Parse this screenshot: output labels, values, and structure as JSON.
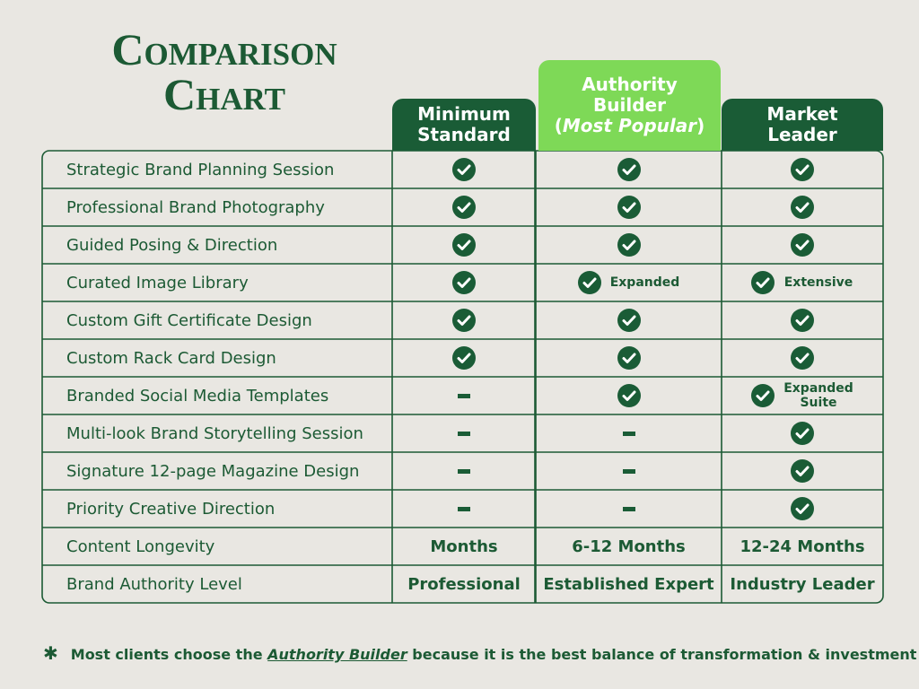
{
  "title": [
    "Comparison",
    "Chart"
  ],
  "columns": [
    {
      "lines": [
        "Minimum",
        "Standard"
      ]
    },
    {
      "lines": [
        "Authority",
        "Builder"
      ],
      "badge_prefix": "(",
      "badge": "Most Popular",
      "badge_suffix": ")",
      "highlight": true
    },
    {
      "lines": [
        "Market",
        "Leader"
      ]
    }
  ],
  "rows": [
    {
      "feature": "Strategic Brand Planning Session",
      "cells": [
        {
          "included": true
        },
        {
          "included": true
        },
        {
          "included": true
        }
      ]
    },
    {
      "feature": "Professional Brand Photography",
      "cells": [
        {
          "included": true
        },
        {
          "included": true
        },
        {
          "included": true
        }
      ]
    },
    {
      "feature": "Guided Posing & Direction",
      "cells": [
        {
          "included": true
        },
        {
          "included": true
        },
        {
          "included": true
        }
      ]
    },
    {
      "feature": "Curated Image Library",
      "cells": [
        {
          "included": true
        },
        {
          "included": true,
          "note": "Expanded"
        },
        {
          "included": true,
          "note": "Extensive"
        }
      ]
    },
    {
      "feature": "Custom Gift Certificate Design",
      "cells": [
        {
          "included": true
        },
        {
          "included": true
        },
        {
          "included": true
        }
      ]
    },
    {
      "feature": "Custom Rack Card Design",
      "cells": [
        {
          "included": true
        },
        {
          "included": true
        },
        {
          "included": true
        }
      ]
    },
    {
      "feature": "Branded Social Media Templates",
      "cells": [
        {
          "included": false
        },
        {
          "included": true
        },
        {
          "included": true,
          "note": "Expanded Suite"
        }
      ]
    },
    {
      "feature": "Multi-look Brand Storytelling Session",
      "cells": [
        {
          "included": false
        },
        {
          "included": false
        },
        {
          "included": true
        }
      ]
    },
    {
      "feature": "Signature 12-page Magazine Design",
      "cells": [
        {
          "included": false
        },
        {
          "included": false
        },
        {
          "included": true
        }
      ]
    },
    {
      "feature": "Priority Creative Direction",
      "cells": [
        {
          "included": false
        },
        {
          "included": false
        },
        {
          "included": true
        }
      ]
    },
    {
      "feature": "Content Longevity",
      "cells": [
        {
          "text": "Months"
        },
        {
          "text": "6-12 Months"
        },
        {
          "text": "12-24 Months"
        }
      ]
    },
    {
      "feature": "Brand Authority Level",
      "cells": [
        {
          "text": "Professional"
        },
        {
          "text": "Established Expert"
        },
        {
          "text": "Industry Leader"
        }
      ]
    }
  ],
  "footnote": {
    "mark": "✱",
    "parts": [
      "Most clients choose the ",
      "Authority Builder",
      " because it is the best balance of transformation & investment"
    ]
  }
}
